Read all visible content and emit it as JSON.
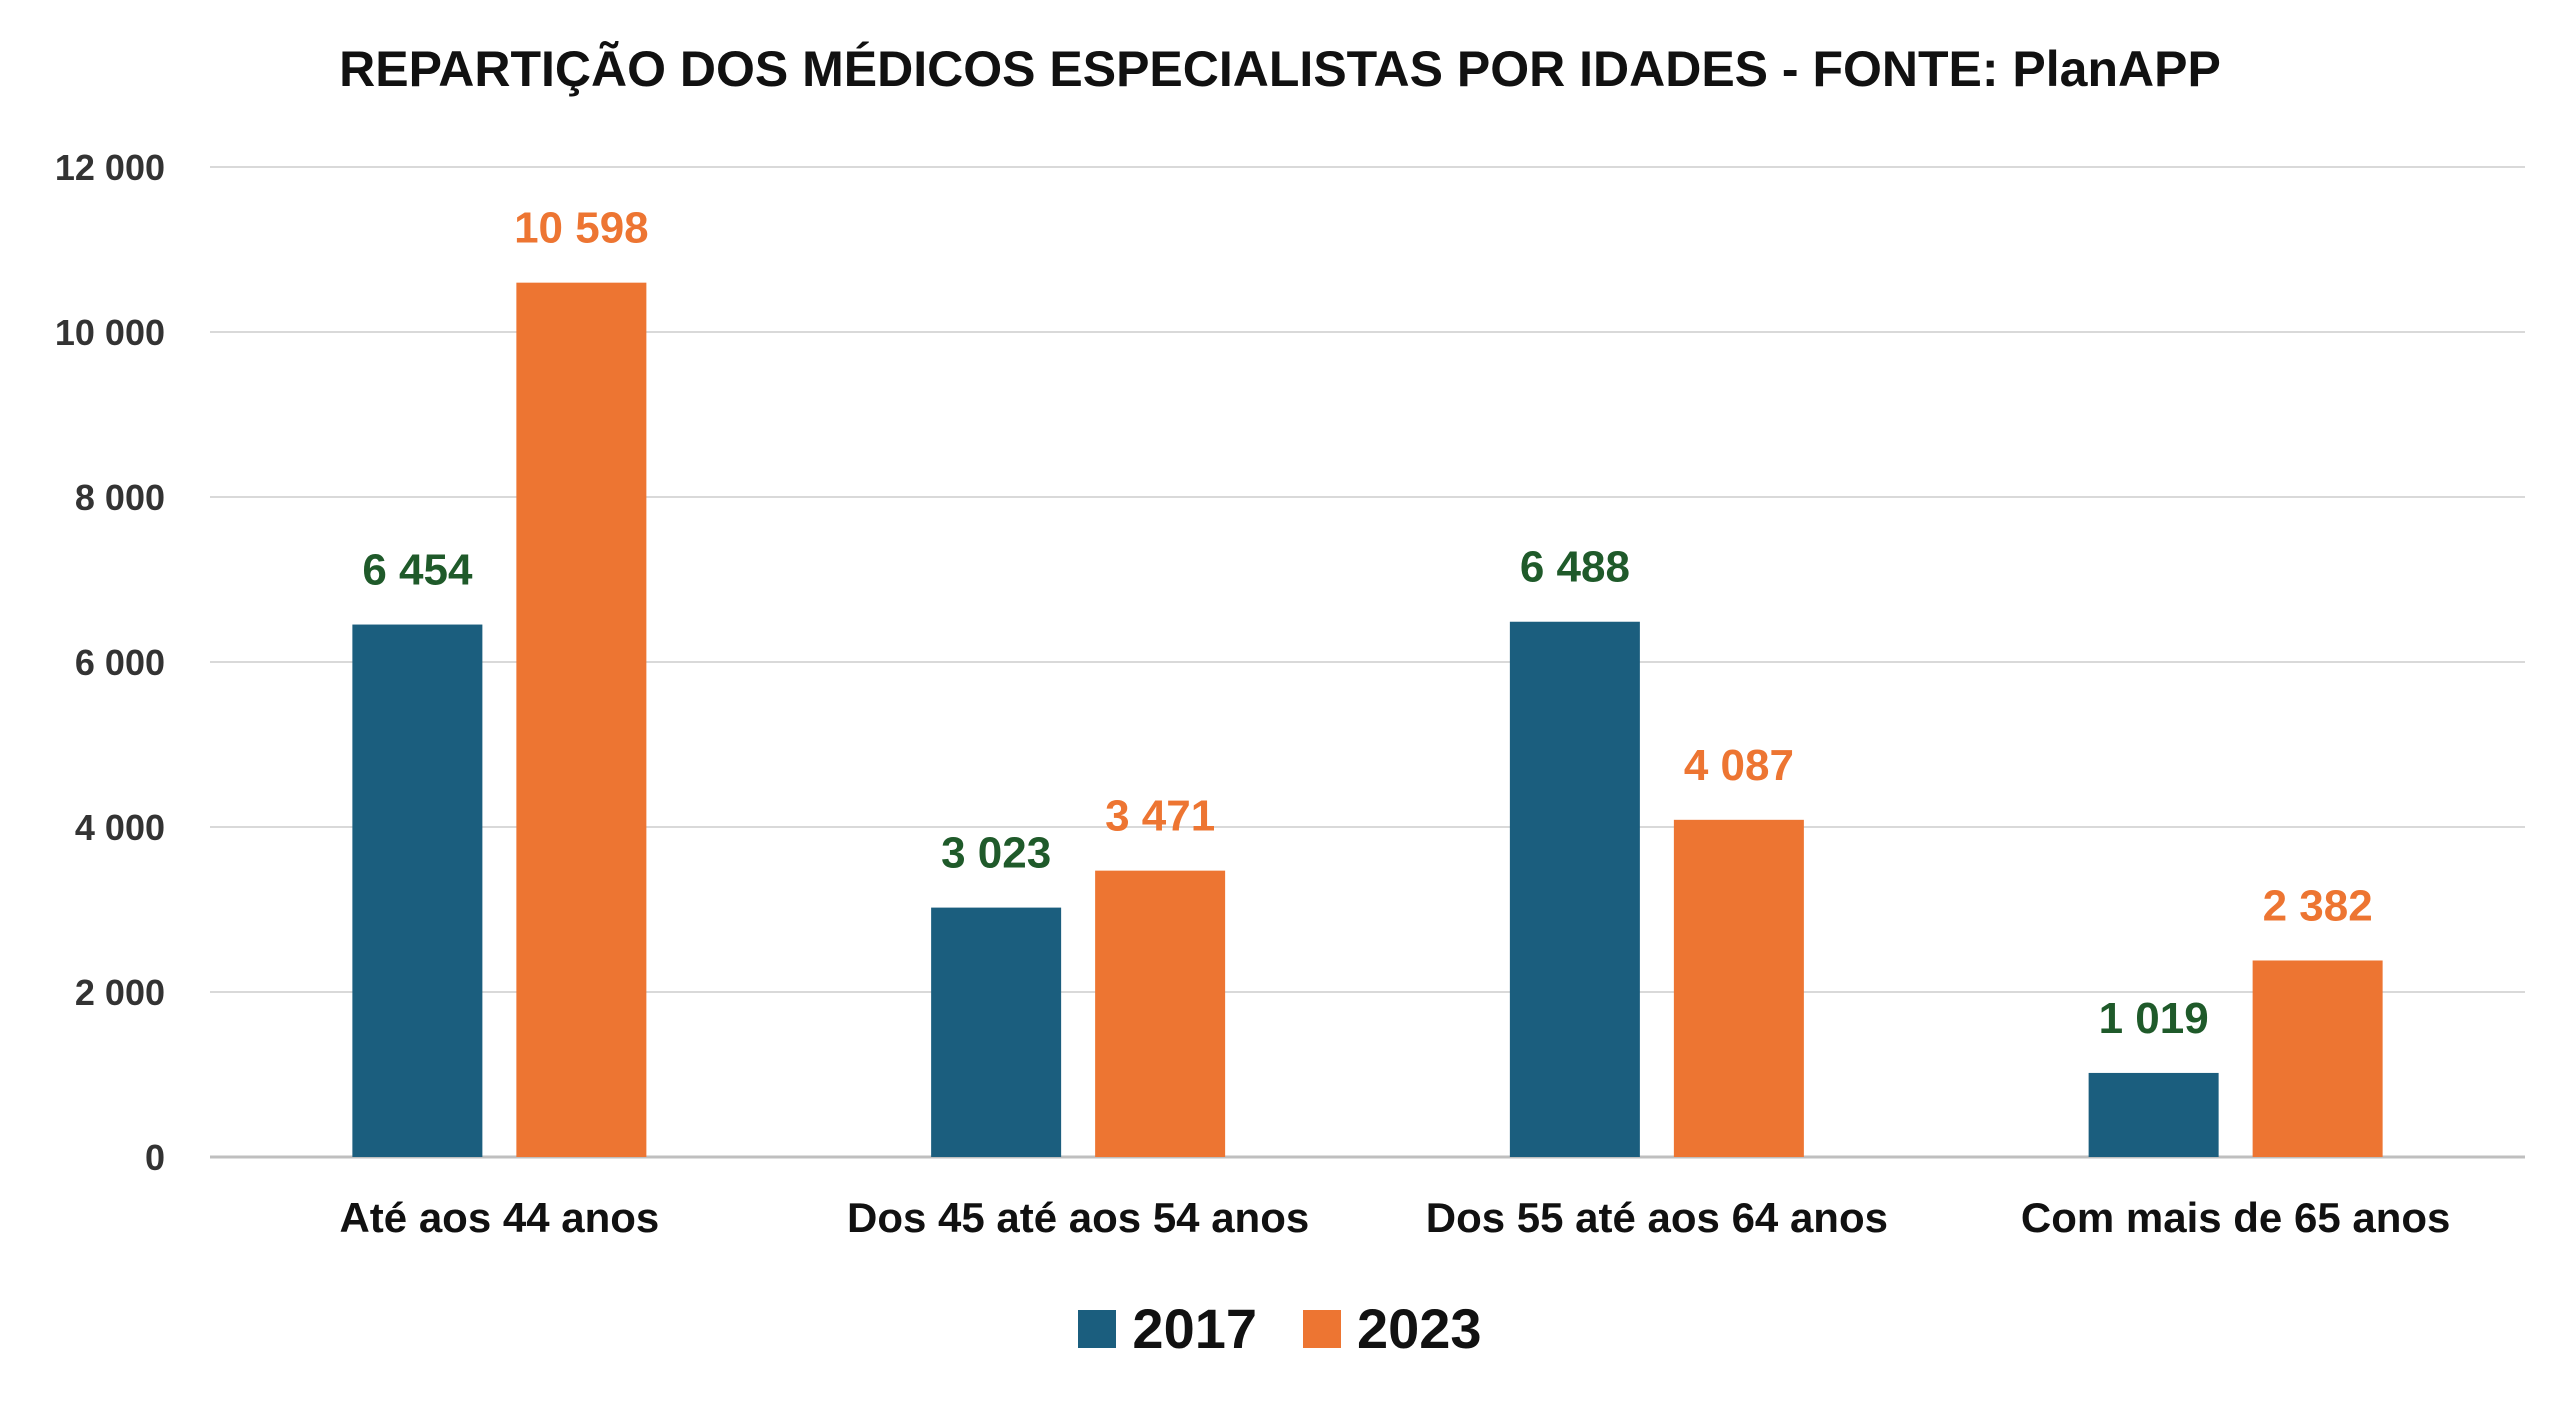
{
  "chart_data": {
    "type": "bar",
    "title": "REPARTIÇÃO DOS MÉDICOS ESPECIALISTAS POR IDADES - FONTE: PlanAPP",
    "categories": [
      "Até aos 44 anos",
      "Dos 45 até aos 54 anos",
      "Dos 55 até aos 64 anos",
      "Com mais de 65 anos"
    ],
    "series": [
      {
        "name": "2017",
        "values": [
          6454,
          3023,
          6488,
          1019
        ],
        "labels": [
          "6 454",
          "3 023",
          "6 488",
          "1 019"
        ],
        "color": "#1b5e7e",
        "label_color": "#1f5a2a"
      },
      {
        "name": "2023",
        "values": [
          10598,
          3471,
          4087,
          2382
        ],
        "labels": [
          "10 598",
          "3 471",
          "4 087",
          "2 382"
        ],
        "color": "#ed7532",
        "label_color": "#ed7532"
      }
    ],
    "yticks": [
      0,
      2000,
      4000,
      6000,
      8000,
      10000,
      12000
    ],
    "ytick_labels": [
      "0",
      "2 000",
      "4 000",
      "6 000",
      "8 000",
      "10 000",
      "12 000"
    ],
    "ylim": [
      0,
      12000
    ],
    "xlabel": "",
    "ylabel": "",
    "grid": true,
    "legend_position": "bottom"
  }
}
